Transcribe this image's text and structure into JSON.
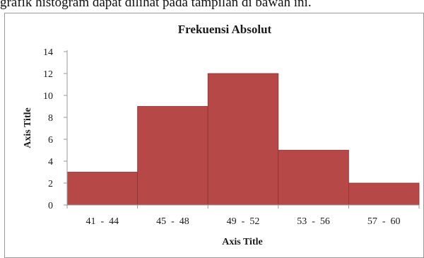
{
  "caption": "grafik histogram dapat dilihat pada tampilan di bawah ini.",
  "chart_data": {
    "type": "bar",
    "title": "Frekuensi  Absolut",
    "xlabel": "Axis Title",
    "ylabel": "Axis Title",
    "categories": [
      "41  -  44",
      "45  -  48",
      "49  -  52",
      "53  -  56",
      "57  -  60"
    ],
    "values": [
      3,
      9,
      12,
      5,
      2
    ],
    "ylim": [
      0,
      14
    ],
    "yticks": [
      0,
      2,
      4,
      6,
      8,
      10,
      12,
      14
    ],
    "bar_gap": 0,
    "grid": false,
    "legend": "none",
    "colors": {
      "bar_fill": "#b74848",
      "bar_stroke": "#8a3535",
      "axis": "#9a9a9a"
    }
  }
}
